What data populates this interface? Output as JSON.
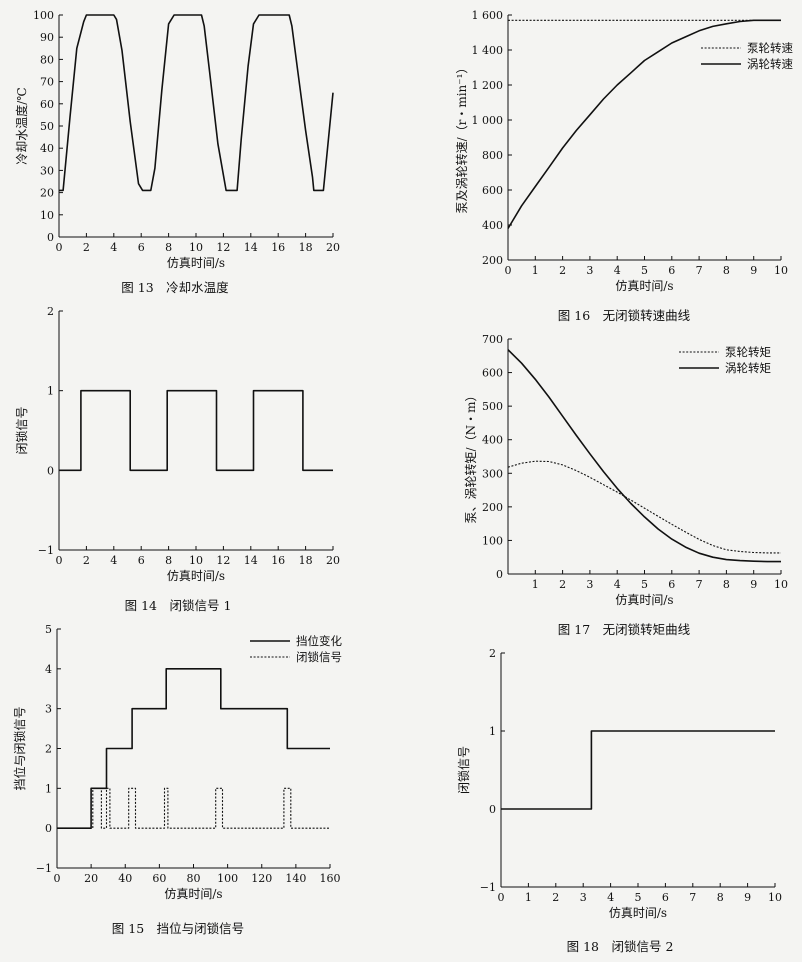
{
  "chart_data": [
    {
      "id": "fig13",
      "type": "line",
      "caption": "图 13　冷却水温度",
      "xlabel": "仿真时间/s",
      "ylabel": "冷却水温度/℃",
      "xlim": [
        0,
        20
      ],
      "ylim": [
        0,
        100
      ],
      "xticks": [
        0,
        2,
        4,
        6,
        8,
        10,
        12,
        14,
        16,
        18,
        20
      ],
      "yticks": [
        0,
        10,
        20,
        30,
        40,
        50,
        60,
        70,
        80,
        90,
        100
      ],
      "grid": false,
      "series": [
        {
          "style": "solid",
          "x": [
            0,
            0.3,
            0.8,
            1.3,
            1.8,
            2.0,
            4.0,
            4.2,
            4.6,
            5.2,
            5.8,
            6.1,
            6.7,
            7.0,
            7.5,
            8.0,
            8.4,
            10.4,
            10.6,
            11.0,
            11.6,
            12.2,
            12.6,
            13.0,
            13.3,
            13.8,
            14.2,
            14.6,
            16.8,
            17.0,
            17.4,
            18.0,
            18.5,
            18.6,
            19.3,
            20.0
          ],
          "y": [
            21,
            21,
            54,
            85,
            97,
            100,
            100,
            98,
            84,
            52,
            24,
            21,
            21,
            31,
            66,
            96,
            100,
            100,
            95,
            74,
            42,
            21,
            21,
            21,
            44,
            77,
            96,
            100,
            100,
            95,
            76,
            48,
            27,
            21,
            21,
            65
          ]
        }
      ]
    },
    {
      "id": "fig14",
      "type": "line",
      "caption": "图 14　闭锁信号 1",
      "xlabel": "仿真时间/s",
      "ylabel": "闭锁信号",
      "xlim": [
        0,
        20
      ],
      "ylim": [
        -1,
        2
      ],
      "xticks": [
        0,
        2,
        4,
        6,
        8,
        10,
        12,
        14,
        16,
        18,
        20
      ],
      "yticks": [
        -1,
        0,
        1,
        2
      ],
      "grid": false,
      "series": [
        {
          "style": "solid",
          "x": [
            0,
            1.6,
            1.6,
            5.2,
            5.2,
            7.9,
            7.9,
            11.5,
            11.5,
            14.2,
            14.2,
            17.8,
            17.8,
            20
          ],
          "y": [
            0,
            0,
            1,
            1,
            0,
            0,
            1,
            1,
            0,
            0,
            1,
            1,
            0,
            0
          ]
        }
      ]
    },
    {
      "id": "fig15",
      "type": "line",
      "caption": "图 15　挡位与闭锁信号",
      "xlabel": "仿真时间/s",
      "ylabel": "挡位与闭锁信号",
      "xlim": [
        0,
        160
      ],
      "ylim": [
        -1,
        5
      ],
      "xticks": [
        0,
        20,
        40,
        60,
        80,
        100,
        120,
        140,
        160
      ],
      "yticks": [
        -1,
        0,
        1,
        2,
        3,
        4,
        5
      ],
      "grid": false,
      "legend": "top-right",
      "series": [
        {
          "name": "挡位变化",
          "style": "solid",
          "x": [
            0,
            20,
            20,
            29,
            29,
            44,
            44,
            64,
            64,
            96,
            96,
            135,
            135,
            160
          ],
          "y": [
            0,
            0,
            1,
            1,
            2,
            2,
            3,
            3,
            4,
            4,
            3,
            3,
            2,
            2
          ]
        },
        {
          "name": "闭锁信号",
          "style": "dotted",
          "x": [
            0,
            21,
            21,
            26,
            26,
            29,
            29,
            31,
            31,
            42,
            42,
            46,
            46,
            63,
            63,
            65,
            65,
            93,
            93,
            97,
            97,
            133,
            133,
            137,
            137,
            160
          ],
          "y": [
            0,
            0,
            1,
            1,
            0,
            0,
            1,
            1,
            0,
            0,
            1,
            1,
            0,
            0,
            1,
            1,
            0,
            0,
            1,
            1,
            0,
            0,
            1,
            1,
            0,
            0
          ]
        }
      ]
    },
    {
      "id": "fig16",
      "type": "line",
      "caption": "图 16　无闭锁转速曲线",
      "xlabel": "仿真时间/s",
      "ylabel": "泵及涡轮转速/（r・min⁻¹）",
      "xlim": [
        0,
        10
      ],
      "ylim": [
        200,
        1600
      ],
      "xticks": [
        0,
        1,
        2,
        3,
        4,
        5,
        6,
        7,
        8,
        9,
        10
      ],
      "yticks": [
        200,
        400,
        600,
        800,
        1000,
        1200,
        1400,
        1600
      ],
      "ytick_labels": [
        "200",
        "400",
        "600",
        "800",
        "1 000",
        "1 200",
        "1 400",
        "1 600"
      ],
      "grid": false,
      "legend": "top-right",
      "series": [
        {
          "name": "泵轮转速",
          "style": "dotted",
          "x": [
            0,
            10
          ],
          "y": [
            1570,
            1570
          ]
        },
        {
          "name": "涡轮转速",
          "style": "solid",
          "x": [
            0,
            0.5,
            1,
            1.5,
            2,
            2.5,
            3,
            3.5,
            4,
            4.5,
            5,
            5.5,
            6,
            6.5,
            7,
            7.5,
            8,
            8.5,
            9,
            9.5,
            10
          ],
          "y": [
            380,
            510,
            620,
            730,
            840,
            940,
            1030,
            1120,
            1200,
            1270,
            1340,
            1390,
            1440,
            1475,
            1510,
            1535,
            1550,
            1563,
            1570,
            1570,
            1570
          ]
        }
      ]
    },
    {
      "id": "fig17",
      "type": "line",
      "caption": "图 17　无闭锁转矩曲线",
      "xlabel": "仿真时间/s",
      "ylabel": "泵、涡轮转矩/（N・m）",
      "xlim": [
        0,
        10
      ],
      "ylim": [
        0,
        700
      ],
      "xticks": [
        1,
        2,
        3,
        4,
        5,
        6,
        7,
        8,
        9,
        10
      ],
      "yticks": [
        0,
        100,
        200,
        300,
        400,
        500,
        600,
        700
      ],
      "grid": false,
      "legend": "top-right",
      "series": [
        {
          "name": "泵轮转矩",
          "style": "dotted",
          "x": [
            0,
            0.5,
            1,
            1.5,
            2,
            2.5,
            3,
            3.5,
            4,
            4.5,
            5,
            5.5,
            6,
            6.5,
            7,
            7.5,
            8,
            8.5,
            9,
            9.5,
            10
          ],
          "y": [
            318,
            330,
            336,
            335,
            325,
            308,
            288,
            266,
            244,
            220,
            196,
            172,
            148,
            125,
            103,
            85,
            72,
            67,
            64,
            63,
            63
          ]
        },
        {
          "name": "涡轮转矩",
          "style": "solid",
          "x": [
            0,
            0.5,
            1,
            1.5,
            2,
            2.5,
            3,
            3.5,
            4,
            4.5,
            5,
            5.5,
            6,
            6.5,
            7,
            7.5,
            8,
            8.5,
            9,
            9.5,
            10
          ],
          "y": [
            668,
            628,
            580,
            527,
            470,
            413,
            358,
            305,
            255,
            210,
            170,
            134,
            104,
            80,
            62,
            50,
            43,
            40,
            38,
            37,
            37
          ]
        }
      ]
    },
    {
      "id": "fig18",
      "type": "line",
      "caption": "图 18　闭锁信号 2",
      "xlabel": "仿真时间/s",
      "ylabel": "闭锁信号",
      "xlim": [
        0,
        10
      ],
      "ylim": [
        -1,
        2
      ],
      "xticks": [
        0,
        1,
        2,
        3,
        4,
        5,
        6,
        7,
        8,
        9,
        10
      ],
      "yticks": [
        -1,
        0,
        1,
        2
      ],
      "grid": false,
      "series": [
        {
          "style": "solid",
          "x": [
            0,
            3.3,
            3.3,
            10
          ],
          "y": [
            0,
            0,
            1,
            1
          ]
        }
      ]
    }
  ]
}
